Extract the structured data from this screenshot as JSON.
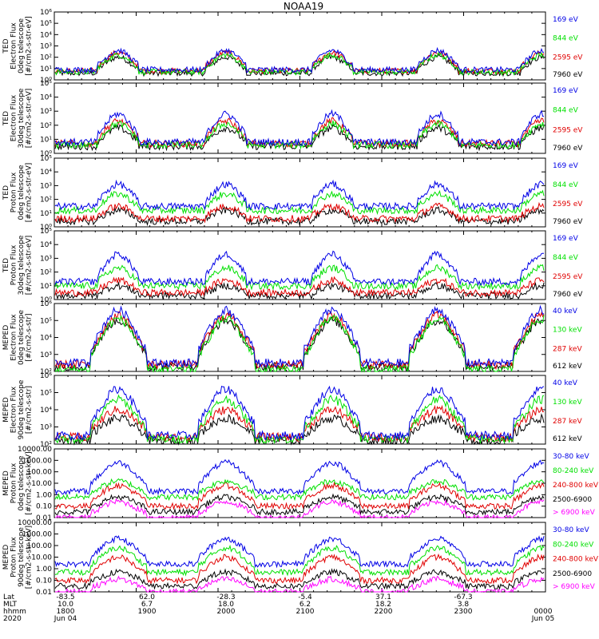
{
  "title": "NOAA19",
  "colors": {
    "black": "#000000",
    "red": "#e00000",
    "green": "#00e000",
    "blue": "#0000e6",
    "magenta": "#ff00ff"
  },
  "orbit_peaks": [
    80,
    215,
    348,
    480,
    610
  ],
  "chart_data": [
    {
      "type": "line",
      "id": "ted-e-0",
      "ylabel_lines": [
        "TED",
        "Electron Flux",
        "0deg telescope",
        "[#/cm2-s-str-eV]"
      ],
      "yscale": "log",
      "ylim": [
        1,
        1000000
      ],
      "tick_labels": [
        "10⁰",
        "10¹",
        "10²",
        "10³",
        "10⁴",
        "10⁵",
        "10⁶"
      ],
      "series": [
        {
          "name": "7960 eV",
          "color": "black",
          "baseline": 0.6,
          "peak": 2.0
        },
        {
          "name": "2595 eV",
          "color": "red",
          "baseline": 0.8,
          "peak": 2.4
        },
        {
          "name": "844 eV",
          "color": "green",
          "baseline": 0.7,
          "peak": 2.2
        },
        {
          "name": "169 eV",
          "color": "blue",
          "baseline": 0.9,
          "peak": 2.6
        }
      ]
    },
    {
      "type": "line",
      "id": "ted-e-30",
      "ylabel_lines": [
        "TED",
        "Electron Flux",
        "30deg telescope",
        "[#/cm2-s-str-eV]"
      ],
      "yscale": "log",
      "ylim": [
        1,
        100000
      ],
      "tick_labels": [
        "10⁰",
        "10¹",
        "10²",
        "10³",
        "10⁴",
        "10⁵"
      ],
      "series": [
        {
          "name": "7960 eV",
          "color": "black",
          "baseline": 0.5,
          "peak": 1.8
        },
        {
          "name": "2595 eV",
          "color": "red",
          "baseline": 0.7,
          "peak": 2.3
        },
        {
          "name": "844 eV",
          "color": "green",
          "baseline": 0.6,
          "peak": 2.1
        },
        {
          "name": "169 eV",
          "color": "blue",
          "baseline": 0.8,
          "peak": 2.8
        }
      ]
    },
    {
      "type": "line",
      "id": "ted-p-0",
      "ylabel_lines": [
        "TED",
        "Proton Flux",
        "0deg telescope",
        "[#/cm2-s-str-eV]"
      ],
      "yscale": "log",
      "ylim": [
        1,
        100000
      ],
      "tick_labels": [
        "10⁰",
        "10¹",
        "10²",
        "10³",
        "10⁴",
        "10⁵"
      ],
      "series": [
        {
          "name": "7960 eV",
          "color": "black",
          "baseline": 0.4,
          "peak": 1.2
        },
        {
          "name": "2595 eV",
          "color": "red",
          "baseline": 0.6,
          "peak": 1.5
        },
        {
          "name": "844 eV",
          "color": "green",
          "baseline": 1.2,
          "peak": 2.4
        },
        {
          "name": "169 eV",
          "color": "blue",
          "baseline": 1.5,
          "peak": 3.1
        }
      ]
    },
    {
      "type": "line",
      "id": "ted-p-30",
      "ylabel_lines": [
        "TED",
        "Proton Flux",
        "30deg telescope",
        "[#/cm2-s-str-eV]"
      ],
      "yscale": "log",
      "ylim": [
        1,
        100000
      ],
      "tick_labels": [
        "10⁰",
        "10¹",
        "10²",
        "10³",
        "10⁴",
        "10⁵"
      ],
      "series": [
        {
          "name": "7960 eV",
          "color": "black",
          "baseline": 0.3,
          "peak": 1.0
        },
        {
          "name": "2595 eV",
          "color": "red",
          "baseline": 0.5,
          "peak": 1.4
        },
        {
          "name": "844 eV",
          "color": "green",
          "baseline": 1.0,
          "peak": 2.3
        },
        {
          "name": "169 eV",
          "color": "blue",
          "baseline": 1.3,
          "peak": 3.3
        }
      ]
    },
    {
      "type": "line",
      "id": "meped-e-0",
      "ylabel_lines": [
        "MEPED",
        "Electron Flux",
        "0deg telescope",
        "[#/cm2-s-str]"
      ],
      "yscale": "log",
      "ylim": [
        100,
        1000000
      ],
      "tick_labels": [
        "10²",
        "10³",
        "10⁴",
        "10⁵",
        "10⁶"
      ],
      "series": [
        {
          "name": "612 keV",
          "color": "black",
          "baseline": 2.3,
          "peak": 5.0
        },
        {
          "name": "287 keV",
          "color": "red",
          "baseline": 2.4,
          "peak": 5.3
        },
        {
          "name": "130 keV",
          "color": "green",
          "baseline": 2.1,
          "peak": 5.1
        },
        {
          "name": "40 keV",
          "color": "blue",
          "baseline": 2.5,
          "peak": 5.6
        }
      ]
    },
    {
      "type": "line",
      "id": "meped-e-90",
      "ylabel_lines": [
        "MEPED",
        "Electron Flux",
        "90deg telescope",
        "[#/cm2-s-str]"
      ],
      "yscale": "log",
      "ylim": [
        100,
        1000000
      ],
      "tick_labels": [
        "10²",
        "10³",
        "10⁴",
        "10⁵",
        "10⁶"
      ],
      "series": [
        {
          "name": "612 keV",
          "color": "black",
          "baseline": 2.2,
          "peak": 3.5
        },
        {
          "name": "287 keV",
          "color": "red",
          "baseline": 2.4,
          "peak": 4.0
        },
        {
          "name": "130 keV",
          "color": "green",
          "baseline": 2.3,
          "peak": 4.6
        },
        {
          "name": "40 keV",
          "color": "blue",
          "baseline": 2.5,
          "peak": 5.2
        }
      ]
    },
    {
      "type": "line",
      "id": "meped-p-0",
      "ylabel_lines": [
        "MEPED",
        "Proton Flux",
        "0deg telescope",
        "[#/cm2-s-str-keV]"
      ],
      "yscale": "log",
      "ylim": [
        0.01,
        10000
      ],
      "tick_labels": [
        "0.01",
        "0.10",
        "1.00",
        "10.00",
        "100.00",
        "1000.00",
        "10000.00"
      ],
      "series": [
        {
          "name": "> 6900 keV",
          "color": "magenta",
          "baseline": -2.0,
          "peak": -0.6
        },
        {
          "name": "2500-6900",
          "color": "black",
          "baseline": -1.5,
          "peak": -0.2
        },
        {
          "name": "240-800 keV",
          "color": "red",
          "baseline": -1.0,
          "peak": 0.8
        },
        {
          "name": "80-240 keV",
          "color": "green",
          "baseline": -0.2,
          "peak": 1.2
        },
        {
          "name": "30-80 keV",
          "color": "blue",
          "baseline": 0.3,
          "peak": 2.8
        }
      ]
    },
    {
      "type": "line",
      "id": "meped-p-90",
      "ylabel_lines": [
        "MEPED",
        "Proton Flux",
        "90deg telescope",
        "[#/cm2-s-str-keV]"
      ],
      "yscale": "log",
      "ylim": [
        0.01,
        10000
      ],
      "tick_labels": [
        "0.01",
        "0.10",
        "1.00",
        "10.00",
        "100.00",
        "1000.00",
        "10000.00"
      ],
      "series": [
        {
          "name": "> 6900 keV",
          "color": "magenta",
          "baseline": -2.0,
          "peak": -0.9
        },
        {
          "name": "2500-6900",
          "color": "black",
          "baseline": -1.5,
          "peak": -0.3
        },
        {
          "name": "240-800 keV",
          "color": "red",
          "baseline": -1.0,
          "peak": 1.0
        },
        {
          "name": "80-240 keV",
          "color": "green",
          "baseline": -0.3,
          "peak": 1.8
        },
        {
          "name": "30-80 keV",
          "color": "blue",
          "baseline": 0.4,
          "peak": 2.6
        }
      ]
    }
  ],
  "x_axis": {
    "row_labels": [
      "Lat",
      "MLT",
      "hhmm",
      "2020"
    ],
    "ticks": [
      {
        "lat": "-83.5",
        "mlt": "10.0",
        "hhmm": "1800",
        "date": "Jun 04"
      },
      {
        "lat": "62.0",
        "mlt": "6.7",
        "hhmm": "1900",
        "date": ""
      },
      {
        "lat": "-28.3",
        "mlt": "18.0",
        "hhmm": "2000",
        "date": ""
      },
      {
        "lat": "-5.4",
        "mlt": "6.2",
        "hhmm": "2100",
        "date": ""
      },
      {
        "lat": "37.1",
        "mlt": "18.2",
        "hhmm": "2200",
        "date": ""
      },
      {
        "lat": "-67.3",
        "mlt": "3.8",
        "hhmm": "2300",
        "date": ""
      },
      {
        "lat": "",
        "mlt": "",
        "hhmm": "0000",
        "date": "Jun 05"
      }
    ]
  }
}
